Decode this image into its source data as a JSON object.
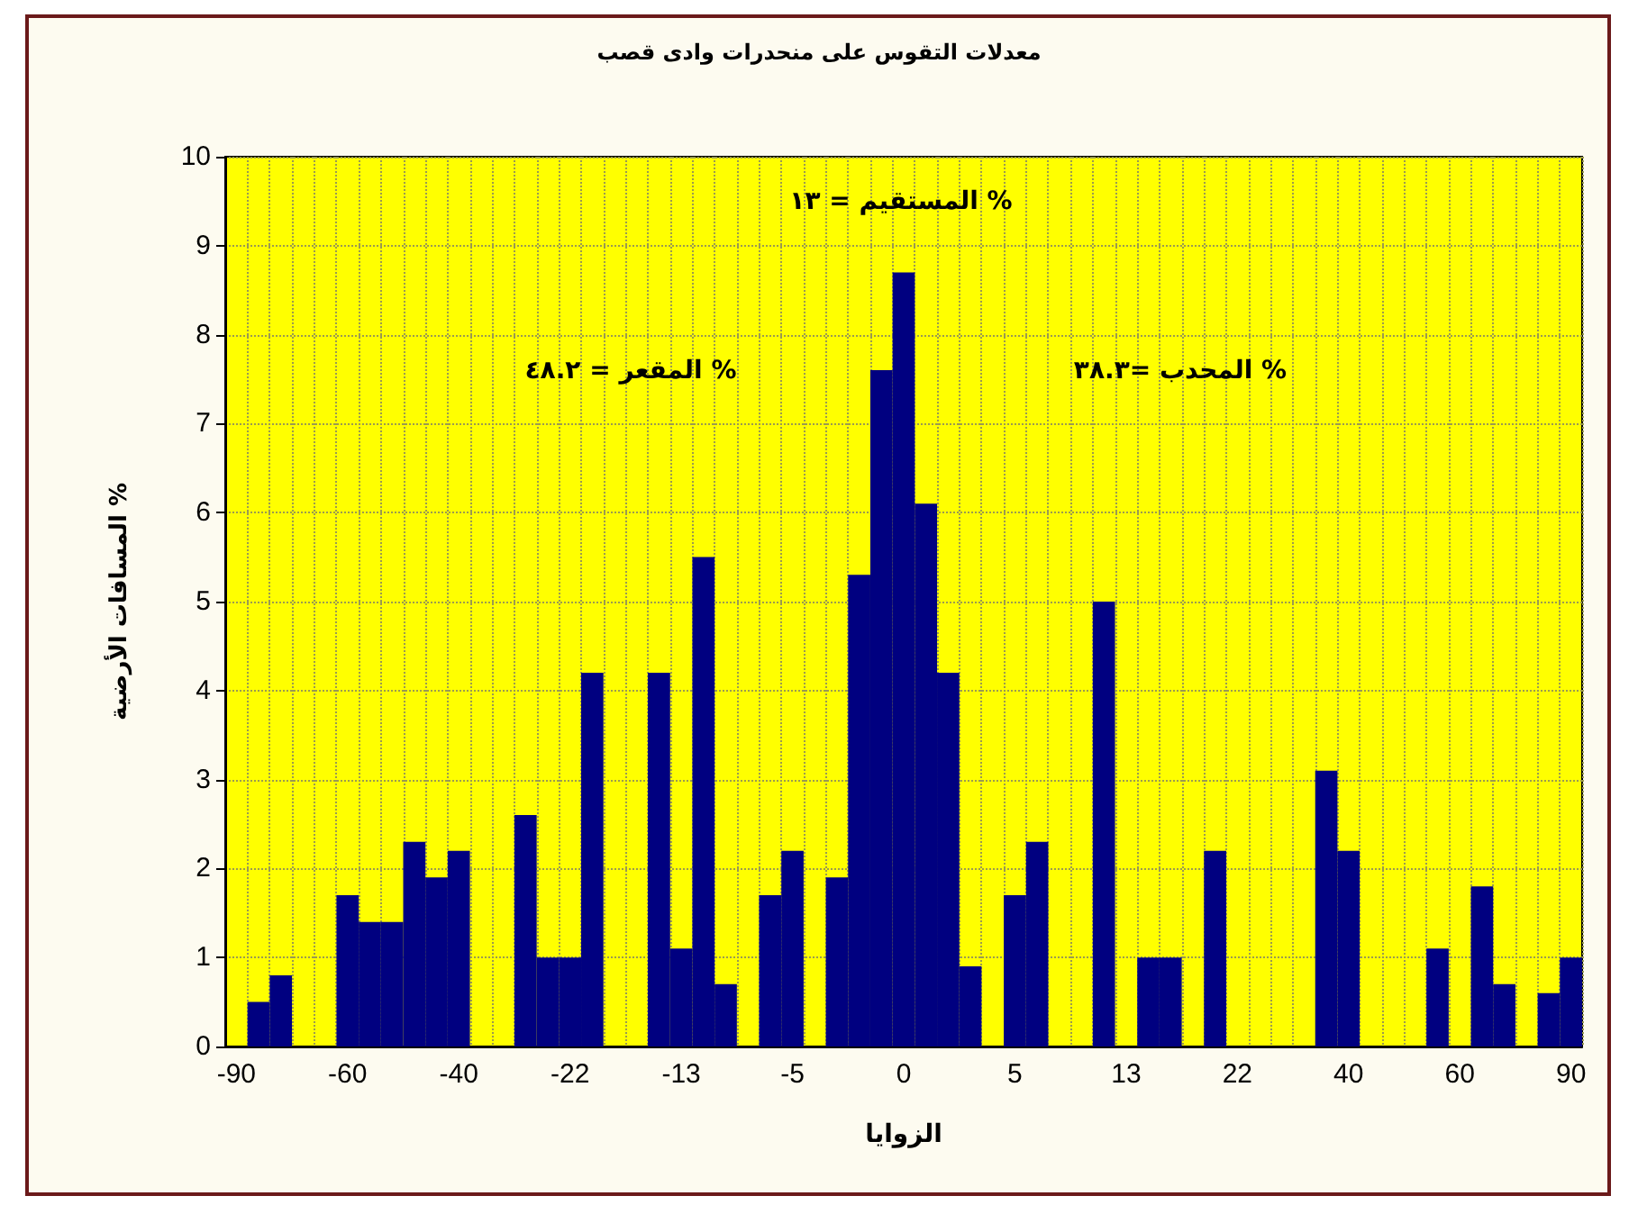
{
  "chart_data": {
    "type": "bar",
    "title": "معدلات التقوس على منحدرات وادى قصب",
    "xlabel": "الزوايا",
    "ylabel": "المسافات الأرضية %",
    "annotations": [
      "المستقيم = ١٣ %",
      "المقعر = ٤٨.٢ %",
      "المحدب =٣٨.٣ %"
    ],
    "categories": [
      "-90",
      null,
      null,
      null,
      null,
      "-60",
      null,
      null,
      null,
      null,
      "-40",
      null,
      null,
      null,
      null,
      "-22",
      null,
      null,
      null,
      null,
      "-13",
      null,
      null,
      null,
      null,
      "-5",
      null,
      null,
      null,
      null,
      "0",
      null,
      null,
      null,
      null,
      "5",
      null,
      null,
      null,
      null,
      "13",
      null,
      null,
      null,
      null,
      "22",
      null,
      null,
      null,
      null,
      "40",
      null,
      null,
      null,
      null,
      "60",
      null,
      null,
      null,
      null,
      "90"
    ],
    "values": [
      0,
      0.5,
      0.8,
      0,
      0,
      1.7,
      1.4,
      1.4,
      2.3,
      1.9,
      2.2,
      0,
      0,
      2.6,
      1.0,
      1.0,
      4.2,
      0,
      0,
      4.2,
      1.1,
      5.5,
      0.7,
      0,
      1.7,
      2.2,
      0,
      1.9,
      5.3,
      7.6,
      8.7,
      6.1,
      4.2,
      0.9,
      0,
      1.7,
      2.3,
      0,
      0,
      5.0,
      0,
      1.0,
      1.0,
      0,
      2.2,
      0,
      0,
      0,
      0,
      3.1,
      2.2,
      0,
      0,
      0,
      1.1,
      0,
      1.8,
      0.7,
      0,
      0.6,
      1.0
    ],
    "color": "#000080",
    "ylim": [
      0,
      10
    ],
    "yticks": [
      0,
      1,
      2,
      3,
      4,
      5,
      6,
      7,
      8,
      9,
      10
    ],
    "grid": true
  }
}
